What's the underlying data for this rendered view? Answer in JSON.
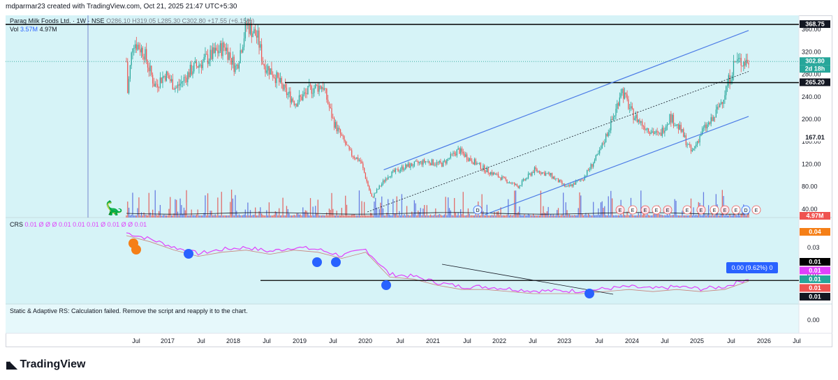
{
  "header": {
    "text": "mdparmar23 created with TradingView.com, Oct 21, 2025 21:47 UTC+5:30"
  },
  "legend": {
    "symbol": "Parag Milk Foods Ltd. · 1W · NSE",
    "ohlc": "O286.10 H319.05 L285.30 C302.80 +17.55 (+6.15%)",
    "vol_label": "Vol",
    "vol_value": "3.57M",
    "vol_ma": "4.97M",
    "crs_label": "CRS",
    "crs_values": "0.01  Ø  Ø  Ø  0.01  0.01  0.01  Ø  0.01  Ø  Ø  0.01"
  },
  "error_text": "Static & Adaptive RS: Calculation failed. Remove the script and reapply it to the chart.",
  "colors": {
    "up": "#26a69a",
    "down": "#ef5350",
    "channel": "#4c7be6",
    "crs": "#e040fb",
    "accent_blue": "#2962ff",
    "background": "#d6f3f7"
  },
  "price_scale": {
    "ticks": [
      "40.00",
      "80.00",
      "120.00",
      "160.00",
      "200.00",
      "240.00",
      "280.00",
      "320.00",
      "360.00"
    ]
  },
  "price_badges": [
    {
      "text": "368.75",
      "price": 368.75,
      "style": "line"
    },
    {
      "text": "302.80",
      "price": 302.8,
      "style": "last"
    },
    {
      "text": "2d 18h",
      "price": 302.8,
      "style": "timer"
    },
    {
      "text": "265.20",
      "price": 265.2,
      "style": "line"
    },
    {
      "text": "167.01",
      "price": 167.01,
      "style": "plain"
    },
    {
      "text": "4.97M",
      "price": 0,
      "style": "vol"
    }
  ],
  "crs_scale": {
    "ticks": [
      "0.03",
      "0.01"
    ],
    "badges": [
      {
        "text": "0.04",
        "color": "#f57f17"
      },
      {
        "text": "0.01",
        "color": "#000000"
      },
      {
        "text": "0.01",
        "color": "#e040fb"
      },
      {
        "text": "0.01",
        "color": "#26a69a"
      },
      {
        "text": "0.01",
        "color": "#ef5350"
      },
      {
        "text": "0.01",
        "color": "#131722"
      }
    ]
  },
  "crs_tooltip": "0.00 (9.62%) 0",
  "lower_scale": {
    "tick": "0.00"
  },
  "time_axis": [
    "Jul",
    "2017",
    "Jul",
    "2018",
    "Jul",
    "2019",
    "Jul",
    "2020",
    "Jul",
    "2021",
    "Jul",
    "2022",
    "Jul",
    "2023",
    "Jul",
    "2024",
    "Jul",
    "2025",
    "Jul",
    "2026",
    "Jul"
  ],
  "event_labels": [
    "D",
    "E",
    "E",
    "E",
    "E",
    "E",
    "E",
    "E",
    "E",
    "E",
    "E",
    "D",
    "E"
  ],
  "logo": {
    "text": "TradingView"
  },
  "chart_data": {
    "type": "candlestick",
    "title": "Parag Milk Foods Ltd. · 1W · NSE",
    "ylim": [
      25,
      375
    ],
    "x": [
      "2016-06",
      "2016-07",
      "2016-09",
      "2016-11",
      "2017-01",
      "2017-03",
      "2017-06",
      "2017-09",
      "2017-12",
      "2018-02",
      "2018-04",
      "2018-06",
      "2018-07",
      "2018-09",
      "2018-11",
      "2019-01",
      "2019-04",
      "2019-06",
      "2019-08",
      "2019-11",
      "2020-01",
      "2020-03",
      "2020-06",
      "2020-09",
      "2021-01",
      "2021-04",
      "2021-07",
      "2021-09",
      "2021-12",
      "2022-03",
      "2022-06",
      "2022-09",
      "2022-12",
      "2023-03",
      "2023-06",
      "2023-09",
      "2023-12",
      "2024-01",
      "2024-03",
      "2024-05",
      "2024-08",
      "2024-10",
      "2024-12",
      "2025-02",
      "2025-04",
      "2025-06",
      "2025-08",
      "2025-10"
    ],
    "close": [
      245,
      340,
      320,
      260,
      280,
      255,
      290,
      310,
      330,
      290,
      370,
      345,
      300,
      280,
      250,
      230,
      255,
      260,
      195,
      140,
      125,
      60,
      100,
      115,
      125,
      120,
      145,
      130,
      110,
      95,
      80,
      110,
      100,
      78,
      95,
      140,
      215,
      255,
      210,
      190,
      170,
      205,
      180,
      140,
      180,
      200,
      245,
      302.8
    ],
    "horizontal_levels": [
      368.75,
      265.2
    ],
    "channel": {
      "upper": [
        [
          2020.35,
          110
        ],
        [
          2025.95,
          358
        ]
      ],
      "lower": [
        [
          2021.9,
          30
        ],
        [
          2025.95,
          205
        ]
      ],
      "mid_dotted": [
        [
          2020.1,
          35
        ],
        [
          2025.95,
          285
        ]
      ]
    },
    "volume_ma": "4.97M",
    "crs_series": {
      "name": "CRS",
      "values": [
        0.038,
        0.035,
        0.031,
        0.028,
        0.03,
        0.031,
        0.029,
        0.031,
        0.03,
        0.027,
        0.03,
        0.018,
        0.017,
        0.014,
        0.012,
        0.012,
        0.011,
        0.01,
        0.01,
        0.01,
        0.011,
        0.012,
        0.011,
        0.012,
        0.011,
        0.012,
        0.016
      ]
    },
    "crs_hline": 0.015
  }
}
